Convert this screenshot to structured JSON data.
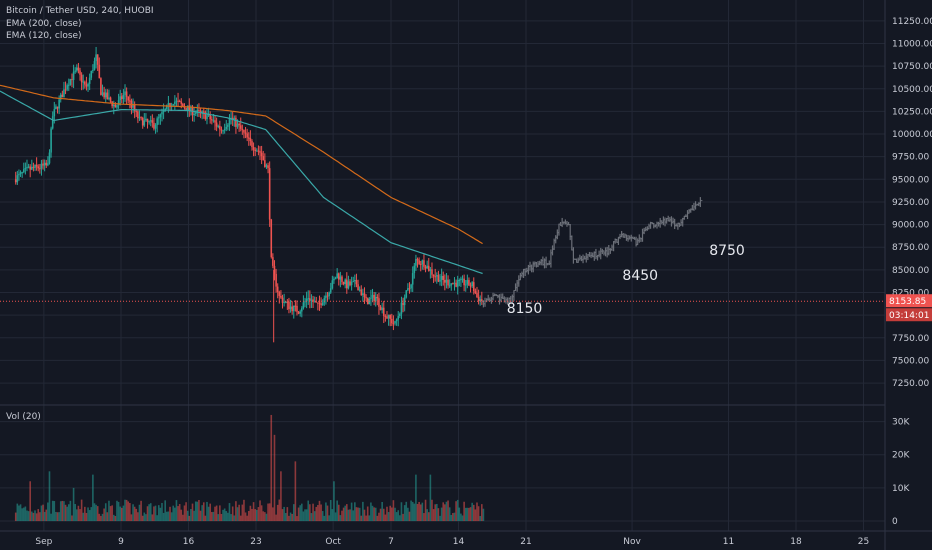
{
  "header": {
    "symbol_title": "Bitcoin / Tether USD, 240, HUOBI",
    "indicator_1": "EMA (200, close)",
    "indicator_2": "EMA (120, close)",
    "volume_label": "Vol (20)"
  },
  "price_badge": {
    "price": "8153.85",
    "countdown": "03:14:01"
  },
  "annotations": [
    {
      "text": "8150",
      "date": "Oct 19"
    },
    {
      "text": "8450",
      "date": "Oct 31"
    },
    {
      "text": "8750",
      "date": "Nov 09"
    }
  ],
  "colors": {
    "background": "#141823",
    "grid": "#232836",
    "text": "#c9ccd6",
    "up_candle": "#26a69a",
    "down_candle": "#ef5350",
    "projection": "#6b6f78",
    "ema_200": "#d36a1a",
    "ema_120": "#3aa8a8",
    "price_line": "#ef5350"
  },
  "chart_data": {
    "type": "candlestick",
    "price_axis": {
      "ticks": [
        7250,
        7500,
        7750,
        8000,
        8250,
        8500,
        8750,
        9000,
        9250,
        9500,
        9750,
        10000,
        10250,
        10500,
        10750,
        11000,
        11250
      ],
      "tick_labels": [
        "7250.00",
        "7500.00",
        "7750.00",
        "8000.00",
        "8250.00",
        "8500.00",
        "8750.00",
        "9000.00",
        "9250.00",
        "9500.00",
        "9750.00",
        "10000.00",
        "10250.00",
        "10500.00",
        "10750.00",
        "11000.00",
        "11250.00"
      ],
      "ylim": [
        7030,
        11480
      ]
    },
    "volume_axis": {
      "ticks": [
        0,
        10000,
        20000,
        30000
      ],
      "tick_labels": [
        "0",
        "10K",
        "20K",
        "30K"
      ],
      "ylim": [
        -3000,
        35000
      ]
    },
    "time_axis": {
      "ticks": [
        "Sep",
        "9",
        "16",
        "23",
        "Oct",
        "7",
        "14",
        "21",
        "Nov",
        "11",
        "18",
        "25"
      ]
    },
    "current_price": 8153.85,
    "price_anchors": [
      [
        "Aug 27 00:00",
        10330
      ],
      [
        "Aug 29 00:00",
        9500
      ],
      [
        "Aug 30 12:00",
        9610
      ],
      [
        "Sep 01 12:00",
        9650
      ],
      [
        "Sep 02 00:00",
        10200
      ],
      [
        "Sep 03 12:00",
        10560
      ],
      [
        "Sep 04 12:00",
        10700
      ],
      [
        "Sep 05 12:00",
        10500
      ],
      [
        "Sep 06 12:00",
        10850
      ],
      [
        "Sep 07 00:00",
        10470
      ],
      [
        "Sep 08 12:00",
        10300
      ],
      [
        "Sep 09 12:00",
        10450
      ],
      [
        "Sep 11 00:00",
        10150
      ],
      [
        "Sep 12 12:00",
        10100
      ],
      [
        "Sep 14 12:00",
        10370
      ],
      [
        "Sep 16 12:00",
        10250
      ],
      [
        "Sep 18 00:00",
        10200
      ],
      [
        "Sep 19 12:00",
        10050
      ],
      [
        "Sep 20 12:00",
        10180
      ],
      [
        "Sep 21 12:00",
        10050
      ],
      [
        "Sep 22 12:00",
        9900
      ],
      [
        "Sep 23 12:00",
        9800
      ],
      [
        "Sep 24 08:00",
        9600
      ],
      [
        "Sep 24 16:00",
        8600
      ],
      [
        "Sep 24 20:00",
        8500
      ],
      [
        "Sep 25 12:00",
        8200
      ],
      [
        "Sep 26 12:00",
        8100
      ],
      [
        "Sep 27 12:00",
        8050
      ],
      [
        "Sep 28 12:00",
        8200
      ],
      [
        "Sep 29 12:00",
        8100
      ],
      [
        "Sep 30 12:00",
        8250
      ],
      [
        "Oct 01 12:00",
        8450
      ],
      [
        "Oct 02 12:00",
        8330
      ],
      [
        "Oct 03 12:00",
        8350
      ],
      [
        "Oct 04 12:00",
        8150
      ],
      [
        "Oct 05 12:00",
        8200
      ],
      [
        "Oct 06 12:00",
        8000
      ],
      [
        "Oct 07 12:00",
        7900
      ],
      [
        "Oct 08 12:00",
        8200
      ],
      [
        "Oct 09 00:00",
        8300
      ],
      [
        "Oct 09 16:00",
        8600
      ],
      [
        "Oct 10 12:00",
        8580
      ],
      [
        "Oct 11 12:00",
        8450
      ],
      [
        "Oct 12 12:00",
        8380
      ],
      [
        "Oct 13 12:00",
        8350
      ],
      [
        "Oct 14 12:00",
        8360
      ],
      [
        "Oct 15 12:00",
        8330
      ],
      [
        "Oct 16 00:00",
        8200
      ],
      [
        "Oct 16 12:00",
        8160
      ]
    ],
    "ema_200": [
      [
        "Aug 27 00:00",
        10550
      ],
      [
        "Sep 02 00:00",
        10400
      ],
      [
        "Sep 09 00:00",
        10330
      ],
      [
        "Sep 16 00:00",
        10300
      ],
      [
        "Sep 20 00:00",
        10260
      ],
      [
        "Sep 24 00:00",
        10200
      ],
      [
        "Sep 30 00:00",
        9800
      ],
      [
        "Oct 07 00:00",
        9300
      ],
      [
        "Oct 14 00:00",
        8950
      ],
      [
        "Oct 16 12:00",
        8790
      ]
    ],
    "ema_120": [
      [
        "Aug 27 00:00",
        10500
      ],
      [
        "Sep 02 00:00",
        10150
      ],
      [
        "Sep 09 00:00",
        10270
      ],
      [
        "Sep 16 00:00",
        10260
      ],
      [
        "Sep 20 00:00",
        10180
      ],
      [
        "Sep 24 00:00",
        10050
      ],
      [
        "Sep 30 00:00",
        9300
      ],
      [
        "Oct 07 00:00",
        8800
      ],
      [
        "Oct 14 00:00",
        8550
      ],
      [
        "Oct 16 12:00",
        8460
      ]
    ],
    "projection_anchors": [
      [
        "Oct 16 12:00",
        8150
      ],
      [
        "Oct 18 00:00",
        8200
      ],
      [
        "Oct 19 12:00",
        8150
      ],
      [
        "Oct 20 12:00",
        8450
      ],
      [
        "Oct 22 00:00",
        8560
      ],
      [
        "Oct 23 12:00",
        8600
      ],
      [
        "Oct 24 12:00",
        9000
      ],
      [
        "Oct 25 12:00",
        9000
      ],
      [
        "Oct 26 00:00",
        8600
      ],
      [
        "Oct 27 12:00",
        8650
      ],
      [
        "Oct 29 12:00",
        8700
      ],
      [
        "Oct 31 00:00",
        8900
      ],
      [
        "Nov 01 12:00",
        8800
      ],
      [
        "Nov 03 00:00",
        9000
      ],
      [
        "Nov 04 12:00",
        9050
      ],
      [
        "Nov 06 00:00",
        9000
      ],
      [
        "Nov 08 00:00",
        9250
      ]
    ],
    "volume_spikes": [
      [
        "Aug 30 12:00",
        12000
      ],
      [
        "Sep 01 12:00",
        15000
      ],
      [
        "Sep 04 00:00",
        10000
      ],
      [
        "Sep 06 00:00",
        14000
      ],
      [
        "Sep 24 12:00",
        32000
      ],
      [
        "Sep 24 20:00",
        26000
      ],
      [
        "Sep 25 12:00",
        15000
      ],
      [
        "Sep 27 00:00",
        18000
      ],
      [
        "Oct 01 00:00",
        12000
      ],
      [
        "Oct 09 12:00",
        14000
      ],
      [
        "Oct 11 00:00",
        14000
      ]
    ]
  }
}
